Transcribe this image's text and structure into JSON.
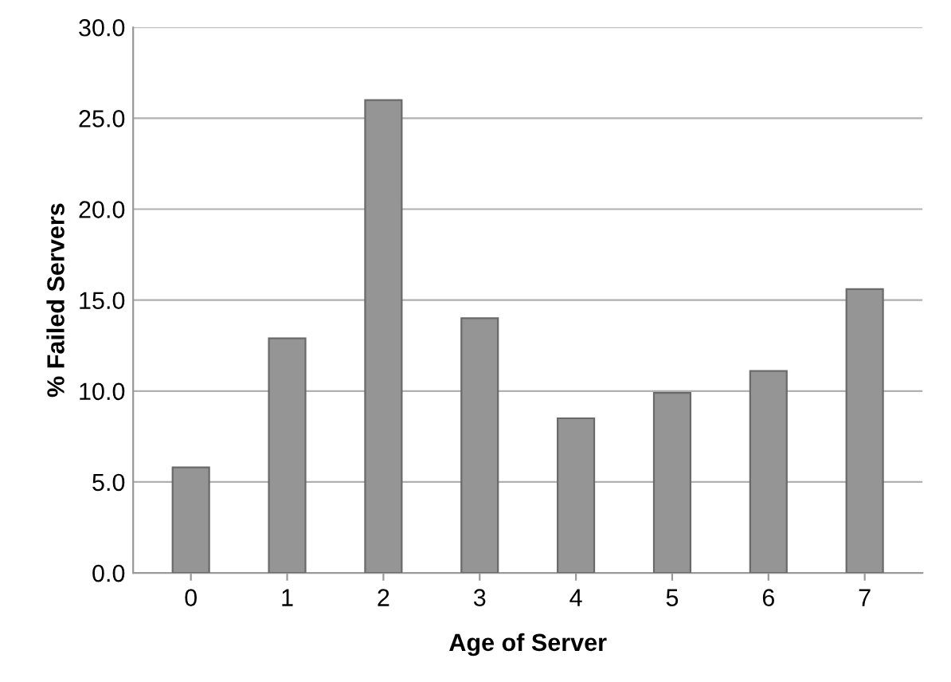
{
  "chart_data": {
    "type": "bar",
    "xlabel": "Age of Server",
    "ylabel": "% Failed Servers",
    "categories": [
      "0",
      "1",
      "2",
      "3",
      "4",
      "5",
      "6",
      "7"
    ],
    "values": [
      5.8,
      12.9,
      26.0,
      14.0,
      8.5,
      9.9,
      11.1,
      15.6
    ],
    "color": "#959595",
    "ylim": [
      0,
      30
    ],
    "yticks": [
      {
        "value": 0,
        "label": "0.0"
      },
      {
        "value": 5,
        "label": "5.0"
      },
      {
        "value": 10,
        "label": "10.0"
      },
      {
        "value": 15,
        "label": "15.0"
      },
      {
        "value": 20,
        "label": "20.0"
      },
      {
        "value": 25,
        "label": "25.0"
      },
      {
        "value": 30,
        "label": "30.0"
      }
    ],
    "grid": "y",
    "legend": false
  }
}
